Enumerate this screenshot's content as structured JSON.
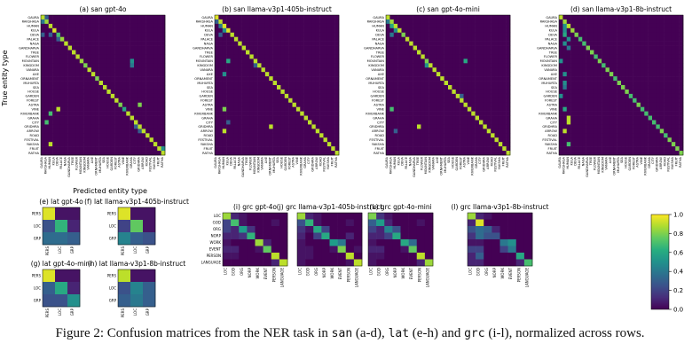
{
  "caption": {
    "pre": "Figure 2: Confusion matrices from the NER task in ",
    "code1": "san",
    "mid1": " (a-d), ",
    "code2": "lat",
    "mid2": " (e-h) and ",
    "code3": "grc",
    "post": " (i-l), normalized across rows."
  },
  "labels": {
    "ylabel": "True entity type",
    "xlabel": "Predicted entity type"
  },
  "colorbar": {
    "ticks": [
      "0.0",
      "0.2",
      "0.4",
      "0.6",
      "0.8",
      "1.0"
    ],
    "low": "#440154",
    "high": "#fde725"
  },
  "san_classes": [
    "GAURA",
    "RAKSHASA",
    "HUMAN",
    "KULA",
    "DEVA",
    "PALACE",
    "NAGA",
    "GANDHARVA",
    "TREE",
    "FLOWER",
    "MOUNTAIN",
    "KINGDOM",
    "VANARA",
    "AXE",
    "ORNAMENT",
    "MUHURTA",
    "SEA",
    "HOUSE",
    "GARDEN",
    "FOREST",
    "ASTRA",
    "VINE",
    "RIVERBANK",
    "GRAHA",
    "CITY",
    "GRIDHRA",
    "ARROW",
    "ROAD",
    "FESTIVAL",
    "YAKSHA",
    "FRUIT",
    "RATHA"
  ],
  "lat_classes": [
    "PERS",
    "LOC",
    "GRP"
  ],
  "grc_classes": [
    "LOC",
    "GOD",
    "ORG",
    "NORP",
    "WORK",
    "EVENT",
    "PERSON",
    "LANGUAGE"
  ],
  "chart_data": [
    {
      "id": "a",
      "title": "(a) san gpt-4o",
      "type": "heatmap",
      "classes": "san",
      "diag": [
        0.9,
        0.85,
        0.9,
        0.95,
        0.7,
        0.85,
        0.9,
        0.9,
        0.9,
        0.9,
        0.85,
        0.8,
        0.9,
        0.9,
        0.8,
        0.9,
        0.9,
        0.9,
        0.9,
        0.9,
        0.8,
        0.6,
        0.9,
        0.9,
        0.9,
        0.9,
        0.9,
        0.9,
        0.9,
        0.9,
        0.9,
        0.9
      ],
      "off": [
        [
          0,
          1,
          0.3
        ],
        [
          1,
          0,
          0.4
        ],
        [
          4,
          2,
          0.3
        ],
        [
          4,
          0,
          0.3
        ],
        [
          5,
          4,
          0.3
        ],
        [
          10,
          23,
          0.5
        ],
        [
          11,
          23,
          0.4
        ],
        [
          20,
          25,
          0.8
        ],
        [
          21,
          4,
          0.9
        ],
        [
          22,
          2,
          0.7
        ],
        [
          24,
          1,
          0.7
        ],
        [
          25,
          24,
          0.3
        ],
        [
          26,
          25,
          0.3
        ],
        [
          29,
          2,
          0.9
        ],
        [
          30,
          31,
          0.5
        ]
      ]
    },
    {
      "id": "b",
      "title": "(b) san llama-v3p1-405b-instruct",
      "type": "heatmap",
      "classes": "san",
      "diag": [
        0.95,
        0.9,
        0.95,
        0.95,
        0.9,
        0.9,
        0.9,
        0.9,
        0.9,
        0.9,
        0.9,
        0.9,
        0.9,
        0.9,
        0.9,
        0.9,
        0.9,
        0.9,
        0.9,
        0.9,
        0.9,
        0.9,
        0.9,
        0.9,
        0.9,
        0.9,
        0.9,
        0.9,
        0.9,
        0.9,
        0.9,
        0.9
      ],
      "off": [
        [
          1,
          0,
          0.3
        ],
        [
          2,
          1,
          0.4
        ],
        [
          3,
          2,
          0.5
        ],
        [
          4,
          1,
          0.3
        ],
        [
          10,
          3,
          0.6
        ],
        [
          11,
          10,
          0.3
        ],
        [
          13,
          2,
          0.5
        ],
        [
          21,
          2,
          0.8
        ],
        [
          24,
          3,
          0.3
        ],
        [
          25,
          14,
          0.9
        ],
        [
          26,
          2,
          0.9
        ]
      ]
    },
    {
      "id": "c",
      "title": "(c) san gpt-4o-mini",
      "type": "heatmap",
      "classes": "san",
      "diag": [
        0.9,
        0.85,
        0.9,
        0.9,
        0.8,
        0.9,
        0.9,
        0.9,
        0.9,
        0.9,
        0.8,
        0.9,
        0.9,
        0.9,
        0.9,
        0.9,
        0.9,
        0.9,
        0.9,
        0.9,
        0.9,
        0.9,
        0.9,
        0.9,
        0.9,
        0.9,
        0.9,
        0.9,
        0.9,
        0.9,
        0.9,
        0.9
      ],
      "off": [
        [
          1,
          0,
          0.4
        ],
        [
          2,
          1,
          0.6
        ],
        [
          3,
          2,
          0.5
        ],
        [
          4,
          1,
          0.4
        ],
        [
          10,
          20,
          0.6
        ],
        [
          11,
          10,
          0.5
        ],
        [
          18,
          19,
          0.3
        ],
        [
          21,
          1,
          0.7
        ],
        [
          25,
          8,
          0.9
        ],
        [
          26,
          2,
          0.3
        ]
      ]
    },
    {
      "id": "d",
      "title": "(d) san llama-v3p1-8b-instruct",
      "type": "heatmap",
      "classes": "san",
      "diag": [
        0.9,
        0.85,
        0.9,
        0.85,
        0.8,
        0.7,
        0.7,
        0.8,
        0.8,
        0.7,
        0.8,
        0.7,
        0.8,
        0.8,
        0.7,
        0.8,
        0.8,
        0.8,
        0.7,
        0.7,
        0.8,
        0.7,
        0.7,
        0.7,
        0.7,
        0.7,
        0.8,
        0.7,
        0.8,
        0.8,
        0.8,
        0.8
      ],
      "off": [
        [
          2,
          1,
          0.5
        ],
        [
          3,
          1,
          0.5
        ],
        [
          4,
          1,
          0.6
        ],
        [
          5,
          2,
          0.5
        ],
        [
          6,
          1,
          0.5
        ],
        [
          7,
          2,
          0.4
        ],
        [
          10,
          0,
          0.5
        ],
        [
          13,
          1,
          0.5
        ],
        [
          15,
          1,
          0.5
        ],
        [
          16,
          1,
          0.4
        ],
        [
          18,
          0,
          0.5
        ],
        [
          21,
          1,
          0.6
        ],
        [
          23,
          2,
          0.9
        ],
        [
          24,
          2,
          0.9
        ],
        [
          26,
          1,
          0.9
        ],
        [
          29,
          2,
          0.7
        ]
      ]
    },
    {
      "id": "e",
      "title": "(e) lat gpt-4o",
      "type": "heatmap",
      "classes": "lat",
      "matrix": [
        [
          0.95,
          0.05,
          0.05
        ],
        [
          0.25,
          0.65,
          0.1
        ],
        [
          0.35,
          0.35,
          0.3
        ]
      ]
    },
    {
      "id": "f",
      "title": "(f) lat llama-v3p1-405b-instruct",
      "type": "heatmap",
      "classes": "lat",
      "matrix": [
        [
          0.95,
          0.05,
          0.05
        ],
        [
          0.2,
          0.75,
          0.05
        ],
        [
          0.45,
          0.3,
          0.25
        ]
      ]
    },
    {
      "id": "g",
      "title": "(g) lat gpt-4o-mini",
      "type": "heatmap",
      "classes": "lat",
      "matrix": [
        [
          0.95,
          0.05,
          0.05
        ],
        [
          0.3,
          0.6,
          0.1
        ],
        [
          0.25,
          0.25,
          0.5
        ]
      ]
    },
    {
      "id": "h",
      "title": "(h) lat llama-v3p1-8b-instruct",
      "type": "heatmap",
      "classes": "lat",
      "matrix": [
        [
          0.9,
          0.05,
          0.05
        ],
        [
          0.25,
          0.45,
          0.3
        ],
        [
          0.3,
          0.4,
          0.3
        ]
      ]
    },
    {
      "id": "i",
      "title": "(i) grc gpt-4o",
      "type": "heatmap",
      "classes": "grc",
      "matrix": [
        [
          0.85,
          0.1,
          0.05,
          0,
          0,
          0,
          0,
          0
        ],
        [
          0.2,
          0.7,
          0.05,
          0,
          0,
          0,
          0.05,
          0
        ],
        [
          0.2,
          0.1,
          0.55,
          0.15,
          0,
          0,
          0,
          0
        ],
        [
          0.1,
          0.1,
          0.15,
          0.65,
          0,
          0,
          0,
          0
        ],
        [
          0.05,
          0,
          0,
          0,
          0.85,
          0.1,
          0,
          0
        ],
        [
          0.1,
          0.1,
          0,
          0,
          0.05,
          0.75,
          0,
          0
        ],
        [
          0.05,
          0.05,
          0,
          0,
          0,
          0,
          0.9,
          0
        ],
        [
          0,
          0,
          0,
          0,
          0,
          0,
          0.1,
          0.9
        ]
      ]
    },
    {
      "id": "j",
      "title": "(j) grc llama-v3p1-405b-instruct",
      "type": "heatmap",
      "classes": "grc",
      "matrix": [
        [
          0.85,
          0.1,
          0.05,
          0,
          0,
          0,
          0,
          0
        ],
        [
          0.25,
          0.65,
          0.05,
          0,
          0,
          0,
          0.05,
          0
        ],
        [
          0.15,
          0.05,
          0.6,
          0.2,
          0,
          0,
          0,
          0
        ],
        [
          0.1,
          0,
          0.2,
          0.6,
          0,
          0,
          0.1,
          0
        ],
        [
          0.05,
          0,
          0,
          0,
          0.55,
          0.4,
          0,
          0
        ],
        [
          0.05,
          0.05,
          0,
          0,
          0.05,
          0.8,
          0,
          0.05
        ],
        [
          0.05,
          0.05,
          0,
          0,
          0,
          0,
          0.9,
          0
        ],
        [
          0.05,
          0,
          0,
          0,
          0,
          0,
          0.05,
          0.9
        ]
      ]
    },
    {
      "id": "k",
      "title": "(k) grc gpt-4o-mini",
      "type": "heatmap",
      "classes": "grc",
      "matrix": [
        [
          0.8,
          0.15,
          0.05,
          0,
          0,
          0,
          0,
          0
        ],
        [
          0.3,
          0.55,
          0.1,
          0,
          0,
          0,
          0.05,
          0
        ],
        [
          0.2,
          0.1,
          0.45,
          0.25,
          0,
          0,
          0,
          0
        ],
        [
          0.1,
          0.1,
          0.2,
          0.6,
          0,
          0,
          0,
          0
        ],
        [
          0.05,
          0,
          0,
          0,
          0.6,
          0.35,
          0,
          0
        ],
        [
          0.1,
          0.1,
          0,
          0,
          0.05,
          0.75,
          0,
          0
        ],
        [
          0.05,
          0.05,
          0,
          0,
          0,
          0,
          0.9,
          0
        ],
        [
          0.05,
          0,
          0,
          0,
          0,
          0,
          0.1,
          0.85
        ]
      ]
    },
    {
      "id": "l",
      "title": "(l) grc llama-v3p1-8b-instruct",
      "type": "heatmap",
      "classes": "grc",
      "matrix": [
        [
          0.85,
          0.1,
          0.05,
          0,
          0,
          0,
          0,
          0
        ],
        [
          0.1,
          0.95,
          0,
          0,
          0,
          0,
          0,
          0
        ],
        [
          0.25,
          0.35,
          0.3,
          0.1,
          0,
          0,
          0,
          0
        ],
        [
          0.15,
          0.35,
          0.25,
          0.25,
          0,
          0,
          0,
          0
        ],
        [
          0.05,
          0.05,
          0,
          0,
          0.4,
          0.5,
          0,
          0
        ],
        [
          0.2,
          0.2,
          0,
          0,
          0.2,
          0.4,
          0,
          0
        ],
        [
          0.1,
          0.3,
          0,
          0,
          0,
          0,
          0.6,
          0
        ],
        [
          0.1,
          0.1,
          0,
          0,
          0,
          0,
          0.1,
          0.7
        ]
      ]
    }
  ]
}
